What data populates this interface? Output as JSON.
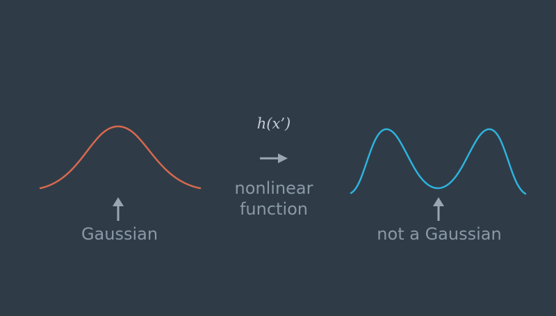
{
  "left": {
    "label": "Gaussian",
    "curve_color": "#d8694e"
  },
  "right": {
    "label": "not a Gaussian",
    "curve_color": "#2fb3de"
  },
  "transform": {
    "formula": "h(x’)",
    "description_line1": "nonlinear",
    "description_line2": "function"
  },
  "colors": {
    "background": "#2f3c48",
    "text": "#8a99a6",
    "arrow": "#9aa7b3"
  },
  "icons": {
    "up_arrow": "up-arrow-icon",
    "right_arrow": "right-arrow-icon"
  }
}
